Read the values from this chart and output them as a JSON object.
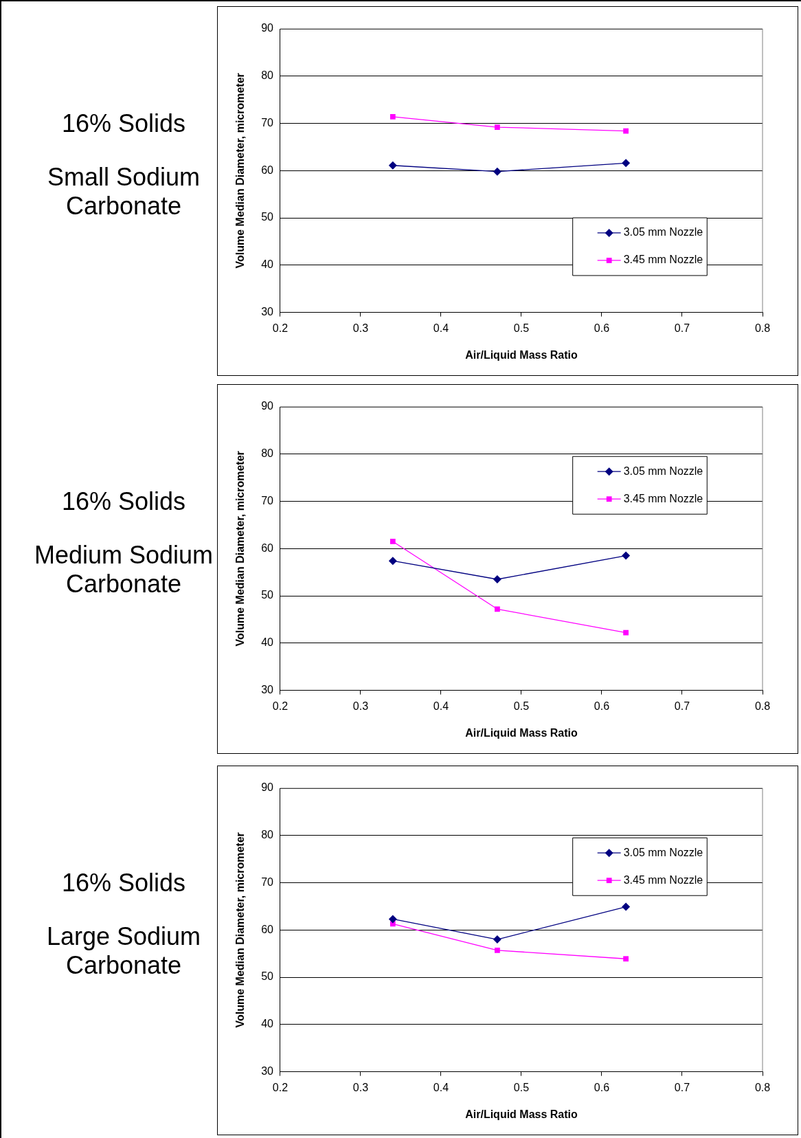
{
  "chart_data": [
    {
      "type": "line",
      "title": "16% Solids",
      "subtitle": "Small Sodium Carbonate",
      "xlabel": "Air/Liquid Mass Ratio",
      "ylabel": "Volume Median Diameter, micrometer",
      "x": [
        0.34,
        0.47,
        0.63
      ],
      "xlim": [
        0.2,
        0.8
      ],
      "xticks": [
        0.2,
        0.3,
        0.4,
        0.5,
        0.6,
        0.7,
        0.8
      ],
      "ylim": [
        30,
        90
      ],
      "yticks": [
        30,
        40,
        50,
        60,
        70,
        80,
        90
      ],
      "grid": "y",
      "legend": "bottom right",
      "series": [
        {
          "name": "3.05 mm Nozzle",
          "color": "#000080",
          "marker": "diamond",
          "values": [
            61.1,
            59.8,
            61.6
          ]
        },
        {
          "name": "3.45 mm Nozzle",
          "color": "#ff00ff",
          "marker": "square",
          "values": [
            71.4,
            69.2,
            68.4
          ]
        }
      ]
    },
    {
      "type": "line",
      "title": "16% Solids",
      "subtitle": "Medium Sodium Carbonate",
      "xlabel": "Air/Liquid Mass Ratio",
      "ylabel": "Volume Median Diameter, micrometer",
      "x": [
        0.34,
        0.47,
        0.63
      ],
      "xlim": [
        0.2,
        0.8
      ],
      "xticks": [
        0.2,
        0.3,
        0.4,
        0.5,
        0.6,
        0.7,
        0.8
      ],
      "ylim": [
        30,
        90
      ],
      "yticks": [
        30,
        40,
        50,
        60,
        70,
        80,
        90
      ],
      "grid": "y",
      "legend": "top right",
      "series": [
        {
          "name": "3.05 mm Nozzle",
          "color": "#000080",
          "marker": "diamond",
          "values": [
            57.4,
            53.5,
            58.5
          ]
        },
        {
          "name": "3.45 mm Nozzle",
          "color": "#ff00ff",
          "marker": "square",
          "values": [
            61.5,
            47.2,
            42.2
          ]
        }
      ]
    },
    {
      "type": "line",
      "title": "16% Solids",
      "subtitle": "Large Sodium Carbonate",
      "xlabel": "Air/Liquid Mass Ratio",
      "ylabel": "Volume Median Diameter, micrometer",
      "x": [
        0.34,
        0.47,
        0.63
      ],
      "xlim": [
        0.2,
        0.8
      ],
      "xticks": [
        0.2,
        0.3,
        0.4,
        0.5,
        0.6,
        0.7,
        0.8
      ],
      "ylim": [
        30,
        90
      ],
      "yticks": [
        30,
        40,
        50,
        60,
        70,
        80,
        90
      ],
      "grid": "y",
      "legend": "top right",
      "series": [
        {
          "name": "3.05 mm Nozzle",
          "color": "#000080",
          "marker": "diamond",
          "values": [
            62.3,
            58.0,
            64.9
          ]
        },
        {
          "name": "3.45 mm Nozzle",
          "color": "#ff00ff",
          "marker": "square",
          "values": [
            61.3,
            55.7,
            53.9
          ]
        }
      ]
    }
  ]
}
